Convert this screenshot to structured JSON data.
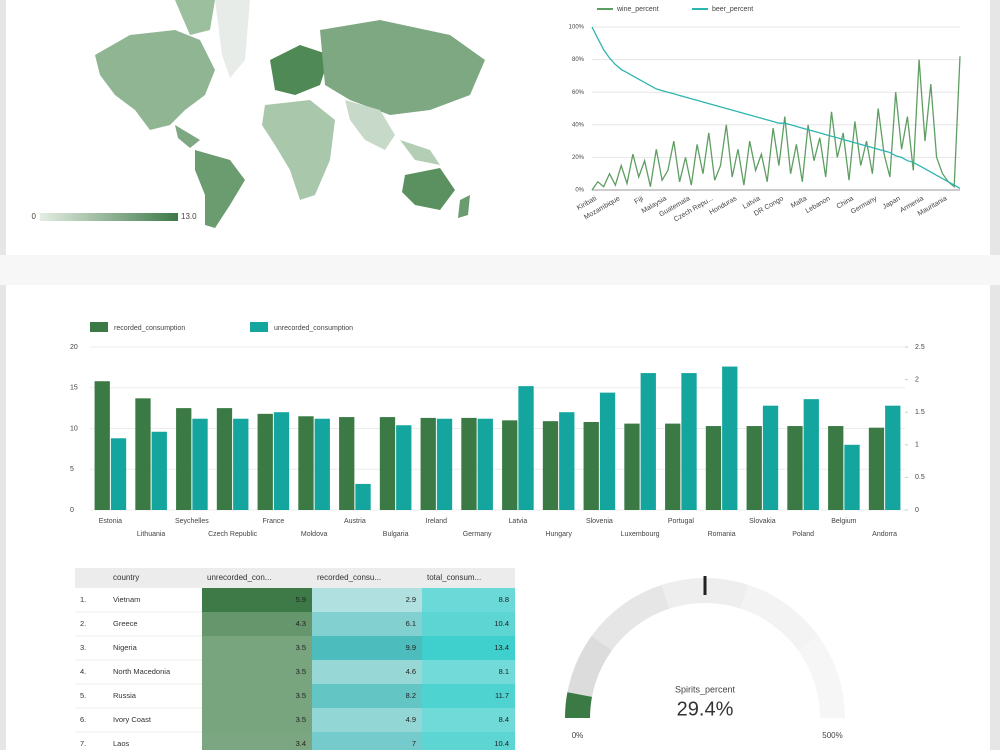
{
  "chart_data": [
    {
      "type": "map",
      "colors": [
        "#e4ede4",
        "#3d7a47"
      ],
      "xlim": [
        0,
        13
      ],
      "xticks": [
        0,
        {
          "value": 13,
          "label": "13.0"
        }
      ]
    },
    {
      "type": "line",
      "categories": [
        "Kiribati",
        null,
        null,
        null,
        "Mozambique",
        null,
        null,
        null,
        "Fiji",
        null,
        null,
        null,
        "Malaysia",
        null,
        null,
        null,
        "Guatemala",
        null,
        null,
        null,
        "Czech Repu...",
        null,
        null,
        null,
        "Honduras",
        null,
        null,
        null,
        "Latvia",
        null,
        null,
        null,
        "DR Congo",
        null,
        null,
        null,
        "Malta",
        null,
        null,
        null,
        "Lebanon",
        null,
        null,
        null,
        "China",
        null,
        null,
        null,
        "Germany",
        null,
        null,
        null,
        "Japan",
        null,
        null,
        null,
        "Armenia",
        null,
        null,
        null,
        "Mauritania",
        null,
        null,
        null
      ],
      "series": [
        {
          "name": "wine_percent",
          "color": "#5f9e62",
          "values": [
            0,
            5,
            2,
            10,
            3,
            15,
            4,
            22,
            8,
            18,
            2,
            25,
            6,
            12,
            30,
            5,
            20,
            3,
            28,
            10,
            35,
            6,
            15,
            40,
            8,
            25,
            3,
            30,
            12,
            22,
            5,
            38,
            15,
            45,
            10,
            28,
            5,
            40,
            18,
            32,
            8,
            48,
            20,
            35,
            6,
            42,
            15,
            30,
            10,
            50,
            22,
            8,
            60,
            25,
            45,
            12,
            80,
            30,
            65,
            20,
            10,
            5,
            2,
            82
          ]
        },
        {
          "name": "beer_percent",
          "color": "#2fb5b0",
          "values": [
            100,
            93,
            86,
            81,
            77,
            74,
            72,
            70,
            68,
            66,
            64,
            62,
            61,
            60,
            59,
            58,
            57,
            56,
            55,
            54,
            53,
            52,
            51,
            50,
            49,
            48,
            47,
            46,
            45,
            44,
            43,
            42,
            41,
            41,
            40,
            39,
            38,
            37,
            36,
            35,
            34,
            33,
            32,
            31,
            30,
            29,
            28,
            27,
            26,
            25,
            24,
            23,
            21,
            20,
            18,
            17,
            15,
            13,
            11,
            9,
            7,
            5,
            3,
            1
          ]
        }
      ],
      "ylim": [
        0,
        100
      ],
      "yticks": [
        {
          "value": 0,
          "label": "0%"
        },
        {
          "value": 20,
          "label": "20%"
        },
        {
          "value": 40,
          "label": "40%"
        },
        {
          "value": 60,
          "label": "60%"
        },
        {
          "value": 80,
          "label": "80%"
        },
        {
          "value": 100,
          "label": "100%"
        }
      ],
      "grid": true
    },
    {
      "type": "bar",
      "categories": [
        "Estonia",
        "Lithuania",
        "Seychelles",
        "Czech Republic",
        "France",
        "Moldova",
        "Austria",
        "Bulgaria",
        "Ireland",
        "Germany",
        "Latvia",
        "Hungary",
        "Slovenia",
        "Luxembourg",
        "Portugal",
        "Romania",
        "Slovakia",
        "Poland",
        "Belgium",
        "Andorra"
      ],
      "series": [
        {
          "name": "recorded_consumption",
          "color": "#3b7a44",
          "values": [
            15.8,
            13.7,
            12.5,
            12.5,
            11.8,
            11.5,
            11.4,
            11.4,
            11.3,
            11.3,
            11.0,
            10.9,
            10.8,
            10.6,
            10.6,
            10.3,
            10.3,
            10.3,
            10.3,
            10.1
          ]
        },
        {
          "name": "unrecorded_consumption",
          "color": "#14a59f",
          "axis": "y2",
          "values": [
            1.1,
            1.2,
            1.4,
            1.4,
            1.5,
            1.4,
            0.4,
            1.3,
            1.4,
            1.4,
            1.9,
            1.5,
            1.8,
            2.1,
            2.1,
            2.2,
            1.6,
            1.7,
            1.0,
            1.6
          ]
        }
      ],
      "ylim": [
        0,
        20
      ],
      "yticks": [
        0,
        5,
        10,
        15,
        20
      ],
      "y2lim": [
        0,
        2.5
      ],
      "y2ticks": [
        0,
        0.5,
        1,
        1.5,
        2,
        2.5
      ],
      "grid": true
    },
    {
      "type": "gauge",
      "title": "Spirits_percent",
      "value": 29.4,
      "value_label": "29.4%",
      "target": 250,
      "color": "#3b7a44",
      "ylim": [
        0,
        500
      ],
      "yticks": [
        {
          "value": 0,
          "label": "0%"
        },
        {
          "value": 500,
          "label": "500%"
        }
      ]
    }
  ],
  "table": {
    "columns": [
      "country",
      "unrecorded_con...",
      "recorded_consu...",
      "total_consum..."
    ],
    "rows": [
      [
        "1.",
        "Vietnam",
        5.9,
        2.9,
        8.8
      ],
      [
        "2.",
        "Greece",
        4.3,
        6.1,
        10.4
      ],
      [
        "3.",
        "Nigeria",
        3.5,
        9.9,
        13.4
      ],
      [
        "4.",
        "North Macedonia",
        3.5,
        4.6,
        8.1
      ],
      [
        "5.",
        "Russia",
        3.5,
        8.2,
        11.7
      ],
      [
        "6.",
        "Ivory Coast",
        3.5,
        4.9,
        8.4
      ],
      [
        "7.",
        "Laos",
        3.4,
        7,
        10.4
      ]
    ]
  }
}
